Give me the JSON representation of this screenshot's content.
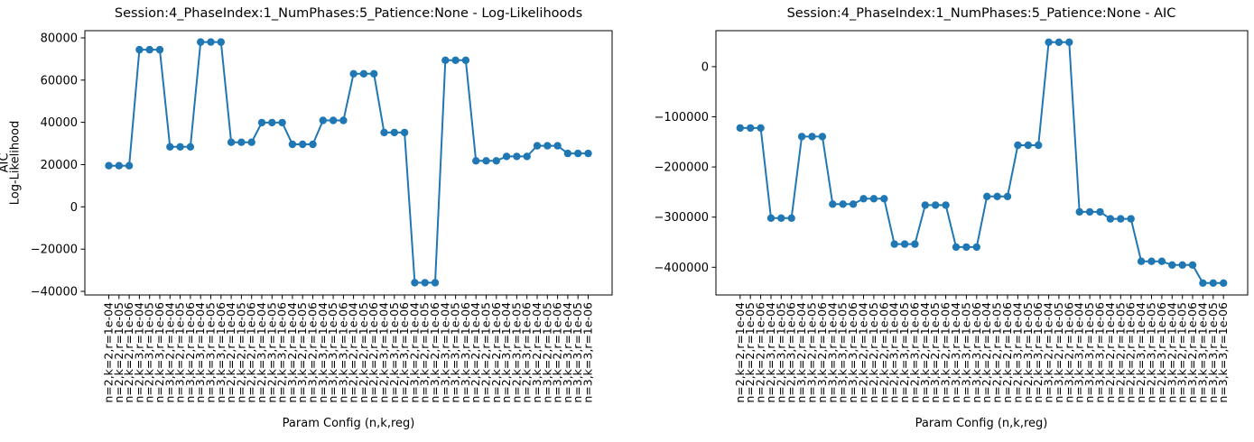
{
  "figure": {
    "background": "#ffffff",
    "accent_color": "#1f77b4",
    "text_color": "#000000"
  },
  "chart_data": [
    {
      "type": "line",
      "title": "Session:4_PhaseIndex:1_NumPhases:5_Patience:None - Log-Likelihoods",
      "xlabel": "Param Config (n,k,reg)",
      "ylabel": "Log-Likelihood",
      "color": "#1f77b4",
      "marker": "circle",
      "grid": false,
      "legend": null,
      "xlim": [
        -2.35,
        49.35
      ],
      "ylim": [
        -41700,
        83400
      ],
      "yticks": [
        80000,
        60000,
        40000,
        20000,
        0,
        -20000,
        -40000
      ],
      "categories": [
        "n=2,k=2,r=1e-04",
        "n=2,k=2,r=1e-05",
        "n=2,k=2,r=1e-06",
        "n=2,k=3,r=1e-04",
        "n=2,k=3,r=1e-05",
        "n=2,k=3,r=1e-06",
        "n=3,k=2,r=1e-04",
        "n=3,k=2,r=1e-05",
        "n=3,k=2,r=1e-06",
        "n=3,k=3,r=1e-04",
        "n=3,k=3,r=1e-05",
        "n=3,k=3,r=1e-06",
        "n=2,k=2,r=1e-04",
        "n=2,k=2,r=1e-05",
        "n=2,k=2,r=1e-06",
        "n=2,k=3,r=1e-04",
        "n=2,k=3,r=1e-05",
        "n=2,k=3,r=1e-06",
        "n=3,k=2,r=1e-04",
        "n=3,k=2,r=1e-05",
        "n=3,k=2,r=1e-06",
        "n=3,k=3,r=1e-04",
        "n=3,k=3,r=1e-05",
        "n=3,k=3,r=1e-06",
        "n=2,k=2,r=1e-04",
        "n=2,k=2,r=1e-05",
        "n=2,k=2,r=1e-06",
        "n=2,k=3,r=1e-04",
        "n=2,k=3,r=1e-05",
        "n=2,k=3,r=1e-06",
        "n=3,k=2,r=1e-04",
        "n=3,k=2,r=1e-05",
        "n=3,k=2,r=1e-06",
        "n=3,k=3,r=1e-04",
        "n=3,k=3,r=1e-05",
        "n=3,k=3,r=1e-06",
        "n=2,k=2,r=1e-04",
        "n=2,k=2,r=1e-05",
        "n=2,k=2,r=1e-06",
        "n=2,k=3,r=1e-04",
        "n=2,k=3,r=1e-05",
        "n=2,k=3,r=1e-06",
        "n=3,k=2,r=1e-04",
        "n=3,k=2,r=1e-05",
        "n=3,k=2,r=1e-06",
        "n=3,k=3,r=1e-04",
        "n=3,k=3,r=1e-05",
        "n=3,k=3,r=1e-06"
      ],
      "values": [
        19500,
        19500,
        19500,
        74400,
        74400,
        74400,
        28400,
        28400,
        28400,
        78000,
        78000,
        78000,
        30600,
        30600,
        30600,
        39900,
        39900,
        39900,
        29600,
        29600,
        29600,
        40900,
        40900,
        40900,
        63000,
        63000,
        63000,
        35200,
        35200,
        35200,
        -35900,
        -35900,
        -35900,
        69400,
        69400,
        69400,
        21800,
        21800,
        21800,
        23900,
        23900,
        23900,
        28900,
        28900,
        28900,
        25300,
        25300,
        25300
      ]
    },
    {
      "type": "line",
      "title": "Session:4_PhaseIndex:1_NumPhases:5_Patience:None - AIC",
      "xlabel": "Param Config (n,k,reg)",
      "ylabel": "AIC",
      "color": "#1f77b4",
      "marker": "circle",
      "grid": false,
      "legend": null,
      "xlim": [
        -2.35,
        49.35
      ],
      "ylim": [
        -455300,
        71800
      ],
      "yticks": [
        0,
        -100000,
        -200000,
        -300000,
        -400000
      ],
      "categories": [
        "n=2,k=2,r=1e-04",
        "n=2,k=2,r=1e-05",
        "n=2,k=2,r=1e-06",
        "n=2,k=3,r=1e-04",
        "n=2,k=3,r=1e-05",
        "n=2,k=3,r=1e-06",
        "n=3,k=2,r=1e-04",
        "n=3,k=2,r=1e-05",
        "n=3,k=2,r=1e-06",
        "n=3,k=3,r=1e-04",
        "n=3,k=3,r=1e-05",
        "n=3,k=3,r=1e-06",
        "n=2,k=2,r=1e-04",
        "n=2,k=2,r=1e-05",
        "n=2,k=2,r=1e-06",
        "n=2,k=3,r=1e-04",
        "n=2,k=3,r=1e-05",
        "n=2,k=3,r=1e-06",
        "n=3,k=2,r=1e-04",
        "n=3,k=2,r=1e-05",
        "n=3,k=2,r=1e-06",
        "n=3,k=3,r=1e-04",
        "n=3,k=3,r=1e-05",
        "n=3,k=3,r=1e-06",
        "n=2,k=2,r=1e-04",
        "n=2,k=2,r=1e-05",
        "n=2,k=2,r=1e-06",
        "n=2,k=3,r=1e-04",
        "n=2,k=3,r=1e-05",
        "n=2,k=3,r=1e-06",
        "n=3,k=2,r=1e-04",
        "n=3,k=2,r=1e-05",
        "n=3,k=2,r=1e-06",
        "n=3,k=3,r=1e-04",
        "n=3,k=3,r=1e-05",
        "n=3,k=3,r=1e-06",
        "n=2,k=2,r=1e-04",
        "n=2,k=2,r=1e-05",
        "n=2,k=2,r=1e-06",
        "n=2,k=3,r=1e-04",
        "n=2,k=3,r=1e-05",
        "n=2,k=3,r=1e-06",
        "n=3,k=2,r=1e-04",
        "n=3,k=2,r=1e-05",
        "n=3,k=2,r=1e-06",
        "n=3,k=3,r=1e-04",
        "n=3,k=3,r=1e-05",
        "n=3,k=3,r=1e-06"
      ],
      "values": [
        -122300,
        -122300,
        -122300,
        -302000,
        -302000,
        -302000,
        -139400,
        -139400,
        -139400,
        -274200,
        -274200,
        -274200,
        -263300,
        -263300,
        -263300,
        -353800,
        -353800,
        -353800,
        -276100,
        -276100,
        -276100,
        -359800,
        -359800,
        -359800,
        -258900,
        -258900,
        -258900,
        -156700,
        -156700,
        -156700,
        48800,
        48800,
        48800,
        -289600,
        -289600,
        -289600,
        -303400,
        -303400,
        -303400,
        -388200,
        -388200,
        -388200,
        -395600,
        -395600,
        -395600,
        -431500,
        -431500,
        -431500
      ]
    }
  ]
}
